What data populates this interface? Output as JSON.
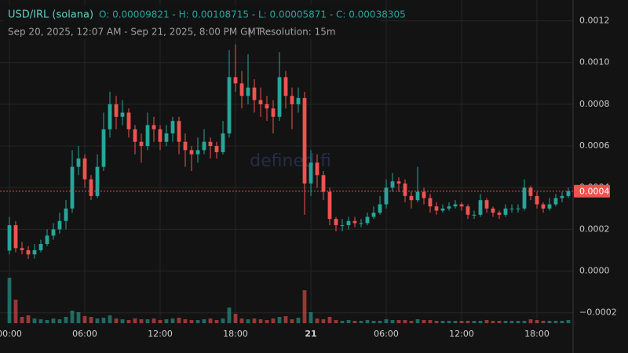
{
  "header": {
    "title": "USD/IRL (solana)",
    "ohlc": "O: 0.00009821 - H: 0.00108715 - L: 0.00005871 - C: 0.00038305",
    "range": "Sep 20, 2025, 12:07 AM - Sep 21, 2025, 8:00 PM GMT",
    "separator": "|",
    "resolution": "Resolution: 15m"
  },
  "watermark": "defined.fi",
  "chart_data": {
    "type": "candlestick",
    "colors": {
      "up": "#26a69a",
      "down": "#ef5350"
    },
    "grid": true,
    "x": [
      0,
      0.5,
      1,
      1.5,
      2,
      2.5,
      3,
      3.5,
      4,
      4.5,
      5,
      5.5,
      6,
      6.5,
      7,
      7.5,
      8,
      8.5,
      9,
      9.5,
      10,
      10.5,
      11,
      11.5,
      12,
      12.5,
      13,
      13.5,
      14,
      14.5,
      15,
      15.5,
      16,
      16.5,
      17,
      17.5,
      18,
      18.5,
      19,
      19.5,
      20,
      20.5,
      21,
      21.5,
      22,
      22.5,
      23,
      23.5,
      24,
      24.5,
      25,
      25.5,
      26,
      26.5,
      27,
      27.5,
      28,
      28.5,
      29,
      29.5,
      30,
      30.5,
      31,
      31.5,
      32,
      32.5,
      33,
      33.5,
      34,
      34.5,
      35,
      35.5,
      36,
      36.5,
      37,
      37.5,
      38,
      38.5,
      39,
      39.5,
      40,
      40.5,
      41,
      41.5,
      42,
      42.5,
      43,
      43.5,
      44,
      44.5
    ],
    "open": [
      9.821e-05,
      0.00022,
      0.00011,
      0.0001,
      8e-05,
      0.0001,
      0.00013,
      0.00017,
      0.0002,
      0.00024,
      0.0003,
      0.0005,
      0.00054,
      0.00044,
      0.00036,
      0.0005,
      0.00068,
      0.0008,
      0.00074,
      0.00076,
      0.00068,
      0.00062,
      0.0006,
      0.0007,
      0.00068,
      0.00062,
      0.00066,
      0.00072,
      0.00062,
      0.00058,
      0.00056,
      0.00058,
      0.00062,
      0.0006,
      0.00057,
      0.00066,
      0.00093,
      0.0009,
      0.00084,
      0.00088,
      0.00082,
      0.0008,
      0.00078,
      0.00074,
      0.00093,
      0.00084,
      0.0008,
      0.00083,
      0.00042,
      0.00052,
      0.00046,
      0.00038,
      0.00025,
      0.00022,
      0.00022,
      0.00024,
      0.00023,
      0.00023,
      0.00026,
      0.00028,
      0.00032,
      0.0004,
      0.00043,
      0.00042,
      0.00036,
      0.00034,
      0.00038,
      0.00035,
      0.00031,
      0.00029,
      0.0003,
      0.00031,
      0.00032,
      0.00031,
      0.00027,
      0.00027,
      0.00034,
      0.0003,
      0.00028,
      0.00027,
      0.0003,
      0.0003,
      0.0003,
      0.0004,
      0.00036,
      0.00032,
      0.0003,
      0.00032,
      0.00035,
      0.00036
    ],
    "high": [
      0.00026,
      0.00024,
      0.00014,
      0.00012,
      0.00013,
      0.00015,
      0.0002,
      0.00023,
      0.00028,
      0.00034,
      0.00058,
      0.0006,
      0.00056,
      0.00046,
      0.00056,
      0.00076,
      0.00086,
      0.00084,
      0.00082,
      0.00078,
      0.0007,
      0.00066,
      0.00076,
      0.00074,
      0.0007,
      0.0007,
      0.00074,
      0.00074,
      0.00066,
      0.0006,
      0.00064,
      0.00068,
      0.00064,
      0.00062,
      0.00072,
      0.00106,
      0.00108715,
      0.00096,
      0.00104,
      0.00092,
      0.00088,
      0.00084,
      0.00082,
      0.00105,
      0.00096,
      0.00088,
      0.00088,
      0.00086,
      0.00058,
      0.00056,
      0.00048,
      0.0004,
      0.00026,
      0.00025,
      0.00026,
      0.00026,
      0.00025,
      0.00028,
      0.00031,
      0.00036,
      0.00044,
      0.00047,
      0.00045,
      0.00044,
      0.00038,
      0.0005,
      0.0004,
      0.00037,
      0.00033,
      0.00032,
      0.00033,
      0.00034,
      0.00033,
      0.00032,
      0.00029,
      0.00037,
      0.00035,
      0.00031,
      0.00029,
      0.00032,
      0.00032,
      0.00032,
      0.00044,
      0.00041,
      0.00038,
      0.00033,
      0.00035,
      0.00037,
      0.00038,
      0.0004
    ],
    "low": [
      8e-05,
      9e-05,
      8e-05,
      5.871e-05,
      6e-05,
      9e-05,
      0.00012,
      0.00015,
      0.00018,
      0.0002,
      0.00028,
      0.00046,
      0.0004,
      0.00034,
      0.00035,
      0.00048,
      0.00064,
      0.00068,
      0.0007,
      0.00064,
      0.00056,
      0.00052,
      0.00058,
      0.00062,
      0.00058,
      0.0006,
      0.00062,
      0.00056,
      0.0005,
      0.00048,
      0.00052,
      0.00056,
      0.00054,
      0.00054,
      0.00056,
      0.00064,
      0.00086,
      0.00078,
      0.0008,
      0.00076,
      0.00074,
      0.00072,
      0.00066,
      0.00072,
      0.00078,
      0.00068,
      0.00076,
      0.00027,
      0.00036,
      0.0004,
      0.00034,
      0.00022,
      0.00019,
      0.00019,
      0.0002,
      0.00021,
      0.00021,
      0.00022,
      0.00025,
      0.00027,
      0.0003,
      0.00038,
      0.00038,
      0.00033,
      0.0003,
      0.00033,
      0.00032,
      0.00028,
      0.00027,
      0.00028,
      0.00029,
      0.0003,
      0.00029,
      0.00025,
      0.00025,
      0.00026,
      0.00028,
      0.00026,
      0.00025,
      0.00026,
      0.00028,
      0.00028,
      0.00029,
      0.00034,
      0.0003,
      0.00028,
      0.00029,
      0.00031,
      0.00033,
      0.00035
    ],
    "close": [
      0.00022,
      0.00011,
      0.0001,
      8e-05,
      0.0001,
      0.00013,
      0.00017,
      0.0002,
      0.00024,
      0.0003,
      0.0005,
      0.00054,
      0.00044,
      0.00036,
      0.0005,
      0.00068,
      0.0008,
      0.00074,
      0.00076,
      0.00068,
      0.00062,
      0.0006,
      0.0007,
      0.00068,
      0.00062,
      0.00066,
      0.00072,
      0.00062,
      0.00058,
      0.00056,
      0.00058,
      0.00062,
      0.0006,
      0.00057,
      0.00066,
      0.00093,
      0.0009,
      0.00084,
      0.00088,
      0.00082,
      0.0008,
      0.00078,
      0.00074,
      0.00093,
      0.00084,
      0.0008,
      0.00083,
      0.00042,
      0.00052,
      0.00046,
      0.00038,
      0.00025,
      0.00022,
      0.00022,
      0.00024,
      0.00023,
      0.00023,
      0.00026,
      0.00028,
      0.00032,
      0.0004,
      0.00043,
      0.00042,
      0.00036,
      0.00034,
      0.00038,
      0.00035,
      0.00031,
      0.00029,
      0.0003,
      0.00031,
      0.00032,
      0.00031,
      0.00027,
      0.00027,
      0.00034,
      0.0003,
      0.00028,
      0.00027,
      0.0003,
      0.0003,
      0.0003,
      0.0004,
      0.00036,
      0.00032,
      0.0003,
      0.00032,
      0.00035,
      0.00036,
      0.00038305
    ],
    "volume": [
      58,
      30,
      8,
      10,
      6,
      5,
      4,
      6,
      5,
      8,
      16,
      14,
      9,
      8,
      6,
      7,
      10,
      6,
      5,
      4,
      6,
      5,
      5,
      6,
      4,
      5,
      6,
      7,
      5,
      4,
      4,
      5,
      6,
      4,
      6,
      20,
      12,
      6,
      5,
      6,
      5,
      4,
      6,
      8,
      9,
      5,
      7,
      42,
      14,
      6,
      5,
      8,
      4,
      3,
      4,
      3,
      3,
      4,
      3,
      3,
      5,
      4,
      4,
      4,
      3,
      5,
      4,
      4,
      3,
      3,
      3,
      3,
      3,
      3,
      3,
      3,
      4,
      3,
      3,
      3,
      3,
      3,
      3,
      5,
      4,
      3,
      3,
      3,
      3,
      4
    ],
    "xlim": [
      -0.75,
      44.875
    ],
    "xticks": [
      {
        "value": 0,
        "label": "00:00"
      },
      {
        "value": 6,
        "label": "06:00"
      },
      {
        "value": 12,
        "label": "12:00"
      },
      {
        "value": 18,
        "label": "18:00"
      },
      {
        "value": 24,
        "label": "21"
      },
      {
        "value": 30,
        "label": "06:00"
      },
      {
        "value": 36,
        "label": "12:00"
      },
      {
        "value": 42,
        "label": "18:00"
      }
    ],
    "ylim": [
      -0.00025,
      0.0013
    ],
    "yticks": [
      0.0012,
      {
        "value": 0.001,
        "label": "0.0010"
      },
      0.0008,
      0.0006,
      0.0004,
      0.0002,
      {
        "value": 0,
        "label": "0.0000"
      },
      {
        "value": -0.0002,
        "label": "−0.0002"
      }
    ],
    "last_price": {
      "value": 0.00038305,
      "label": "0.0004"
    }
  }
}
